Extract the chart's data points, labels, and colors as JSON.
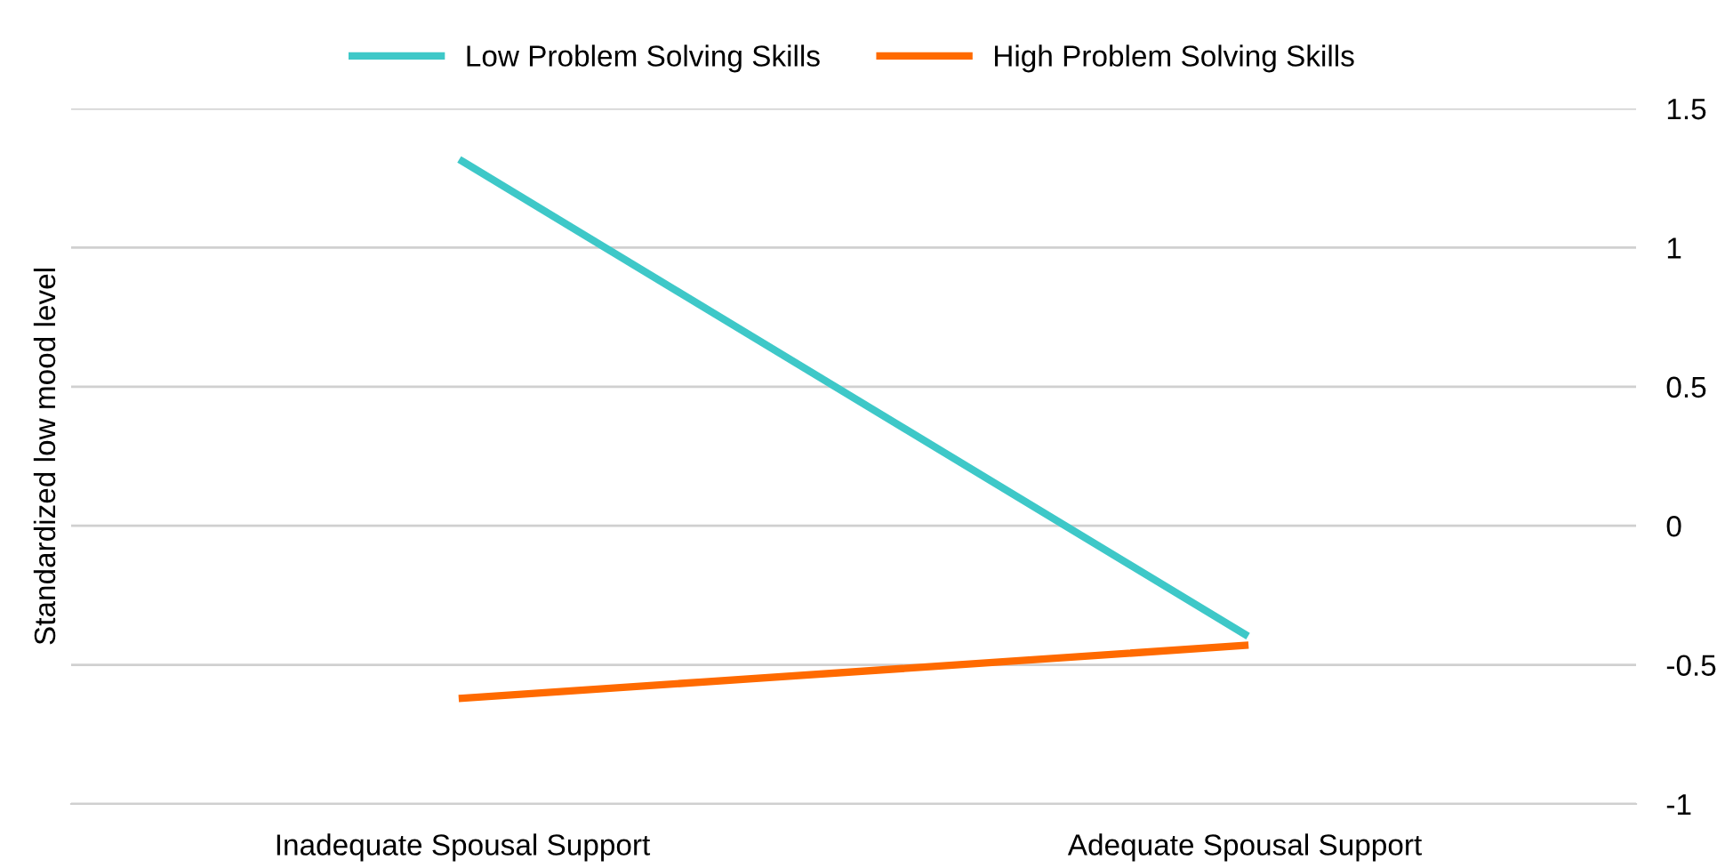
{
  "chart_data": {
    "type": "line",
    "ylabel": "Standardized low mood level",
    "categories": [
      "Inadequate Spousal Support",
      "Adequate Spousal Support"
    ],
    "series": [
      {
        "name": "Low Problem Solving Skills",
        "color": "#3ec8c8",
        "values": [
          1.31,
          -0.39
        ]
      },
      {
        "name": "High Problem Solving Skills",
        "color": "#ff6a00",
        "values": [
          -0.62,
          -0.43
        ]
      }
    ],
    "ylim": [
      -1,
      1.5
    ],
    "yticks": [
      {
        "value": -1,
        "label": "-1"
      },
      {
        "value": -0.5,
        "label": "-0.5"
      },
      0,
      0.5,
      1,
      1.5
    ],
    "grid": "y",
    "legend": "top",
    "marker": "none",
    "line_style": "solid"
  }
}
